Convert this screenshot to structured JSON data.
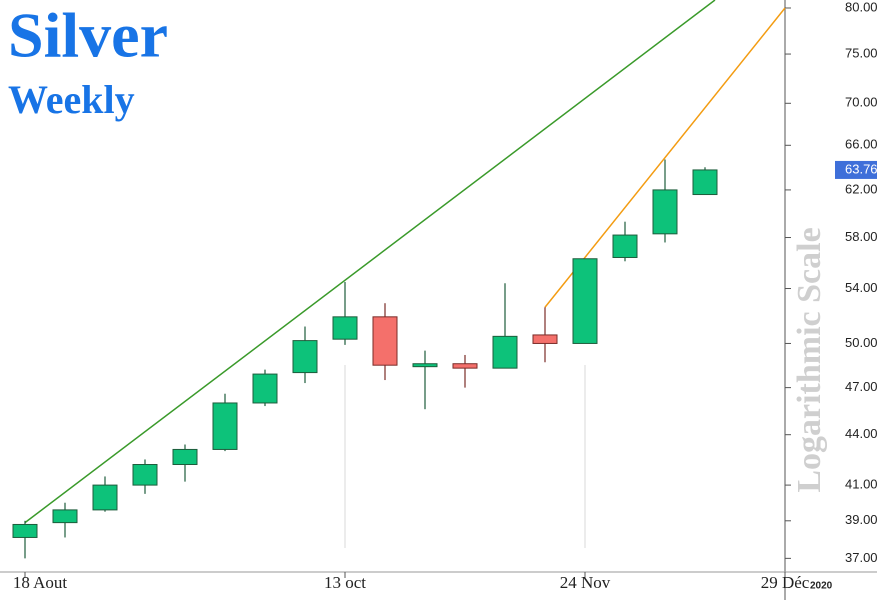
{
  "chart_data": {
    "type": "candlestick",
    "title": "Silver",
    "subtitle": "Weekly",
    "y_axis_label": "Logarithmic Scale",
    "year_label": "2020",
    "log_scale": true,
    "x": [
      0,
      1,
      2,
      3,
      4,
      5,
      6,
      7,
      8,
      9,
      10,
      11,
      12,
      13,
      14,
      15,
      16,
      17
    ],
    "open": [
      38.1,
      38.9,
      39.6,
      41.0,
      42.2,
      43.1,
      46.0,
      48.0,
      50.3,
      51.9,
      48.4,
      48.6,
      48.3,
      50.6,
      50.0,
      56.4,
      58.3,
      61.6
    ],
    "high": [
      39.0,
      40.0,
      41.5,
      42.5,
      43.4,
      46.6,
      48.2,
      51.2,
      54.5,
      52.9,
      49.5,
      49.2,
      54.4,
      52.6,
      56.3,
      59.3,
      64.7,
      64.0
    ],
    "low": [
      37.0,
      38.1,
      39.5,
      40.5,
      41.2,
      43.0,
      45.8,
      47.3,
      49.9,
      47.5,
      45.6,
      47.0,
      48.3,
      48.7,
      50.0,
      56.1,
      57.6,
      61.6
    ],
    "close": [
      38.8,
      39.6,
      41.0,
      42.2,
      43.1,
      46.0,
      47.9,
      50.2,
      51.9,
      48.5,
      48.6,
      48.3,
      50.5,
      50.0,
      56.3,
      58.2,
      62.0,
      63.76
    ],
    "up_color": "#0dc27a",
    "down_color": "#f4706b",
    "trendlines": [
      {
        "color": "#3a9a2a",
        "x": [
          0,
          17.25
        ],
        "y": [
          38.9,
          80.9
        ]
      },
      {
        "color": "#f39c12",
        "x": [
          13,
          19
        ],
        "y": [
          52.6,
          80
        ]
      }
    ],
    "xlim": [
      -0.625,
      19
    ],
    "ylim": [
      36.3,
      80.9
    ],
    "xticks": [
      {
        "value": 0,
        "label": "18 Aout"
      },
      {
        "value": 8,
        "label": "13 oct"
      },
      {
        "value": 14,
        "label": "24 Nov"
      },
      {
        "value": 19,
        "label": "29 Déc"
      }
    ],
    "yticks": [
      {
        "value": 37,
        "label": "37.00"
      },
      {
        "value": 39,
        "label": "39.00"
      },
      {
        "value": 41,
        "label": "41.00"
      },
      {
        "value": 44,
        "label": "44.00"
      },
      {
        "value": 47,
        "label": "47.00"
      },
      {
        "value": 50,
        "label": "50.00"
      },
      {
        "value": 54,
        "label": "54.00"
      },
      {
        "value": 58,
        "label": "58.00"
      },
      {
        "value": 62,
        "label": "62.00"
      },
      {
        "value": 66,
        "label": "66.00"
      },
      {
        "value": 70,
        "label": "70.00"
      },
      {
        "value": 75,
        "label": "75.00"
      },
      {
        "value": 80,
        "label": "80.00"
      }
    ]
  }
}
